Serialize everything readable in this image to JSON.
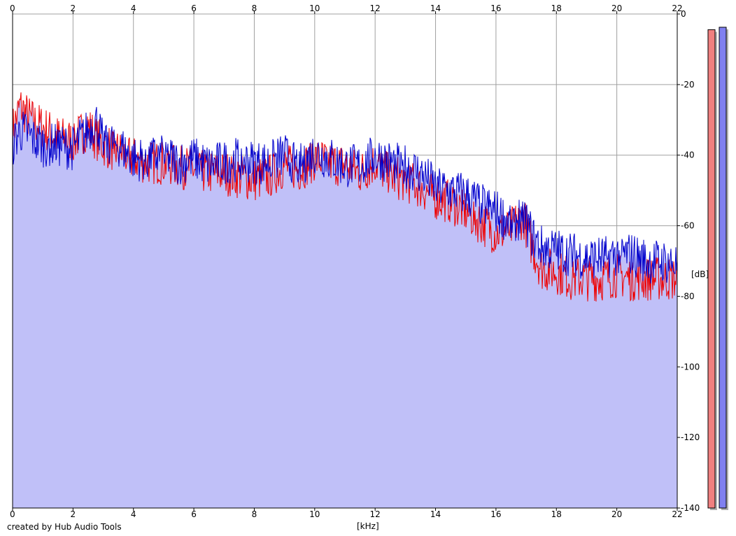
{
  "credit": "created by Hub Audio Tools",
  "chart_data": {
    "type": "area",
    "xlabel": "[kHz]",
    "ylabel": "[dB]",
    "xlim": [
      0,
      22
    ],
    "ylim": [
      -140,
      0
    ],
    "x_ticks": [
      0,
      2,
      4,
      6,
      8,
      10,
      12,
      14,
      16,
      18,
      20,
      22
    ],
    "y_ticks": [
      0,
      -20,
      -40,
      -60,
      -80,
      -100,
      -120,
      -140
    ],
    "grid": true,
    "colors": {
      "fill": "#c0c0f8",
      "left_channel": "#ee0000",
      "right_channel": "#0000cc",
      "grid": "#a0a0a0",
      "meter_left": "#f08080",
      "meter_right": "#8080f0"
    },
    "series": [
      {
        "channel": "left",
        "color": "#ee0000",
        "x": [
          0,
          0.25,
          0.5,
          0.75,
          1,
          1.5,
          2,
          2.5,
          2.75,
          3,
          3.5,
          4,
          4.5,
          5,
          5.5,
          6,
          6.5,
          7,
          7.5,
          8,
          8.5,
          9,
          9.5,
          10,
          10.5,
          11,
          11.5,
          12,
          12.5,
          13,
          13.5,
          14,
          14.5,
          15,
          15.5,
          16,
          16.5,
          16.9,
          17.2,
          17.5,
          18,
          18.5,
          19,
          19.5,
          20,
          20.5,
          21,
          21.5,
          22
        ],
        "y": [
          -33,
          -26,
          -29,
          -31,
          -32,
          -35,
          -36,
          -32,
          -35,
          -37,
          -39,
          -41,
          -42,
          -42,
          -43,
          -44,
          -45,
          -45,
          -46,
          -47,
          -46,
          -43,
          -44,
          -41,
          -42,
          -43,
          -45,
          -42,
          -46,
          -47,
          -49,
          -52,
          -53,
          -56,
          -59,
          -62,
          -61,
          -57,
          -66,
          -72,
          -73,
          -75,
          -75,
          -75,
          -74,
          -75,
          -75,
          -75,
          -75
        ]
      },
      {
        "channel": "right",
        "color": "#0000cc",
        "x": [
          0,
          0.25,
          0.5,
          0.75,
          1,
          1.5,
          2,
          2.5,
          2.75,
          3,
          3.5,
          4,
          4.5,
          5,
          5.5,
          6,
          6.5,
          7,
          7.5,
          8,
          8.5,
          9,
          9.5,
          10,
          10.5,
          11,
          11.5,
          12,
          12.5,
          13,
          13.5,
          14,
          14.5,
          15,
          15.5,
          16,
          16.5,
          16.9,
          17.2,
          17.5,
          18,
          18.5,
          19,
          19.5,
          20,
          20.5,
          21,
          21.5,
          22
        ],
        "y": [
          -37,
          -33,
          -34,
          -36,
          -37,
          -37,
          -38,
          -33,
          -30,
          -36,
          -37,
          -41,
          -41,
          -40,
          -42,
          -41,
          -43,
          -42,
          -41,
          -42,
          -42,
          -40,
          -43,
          -39,
          -41,
          -43,
          -43,
          -40,
          -42,
          -43,
          -45,
          -49,
          -50,
          -51,
          -54,
          -56,
          -59,
          -57,
          -63,
          -66,
          -67,
          -68,
          -69,
          -69,
          -68,
          -68,
          -70,
          -70,
          -71
        ]
      }
    ],
    "meters": {
      "left_level": 0.985,
      "right_level": 0.99
    }
  }
}
